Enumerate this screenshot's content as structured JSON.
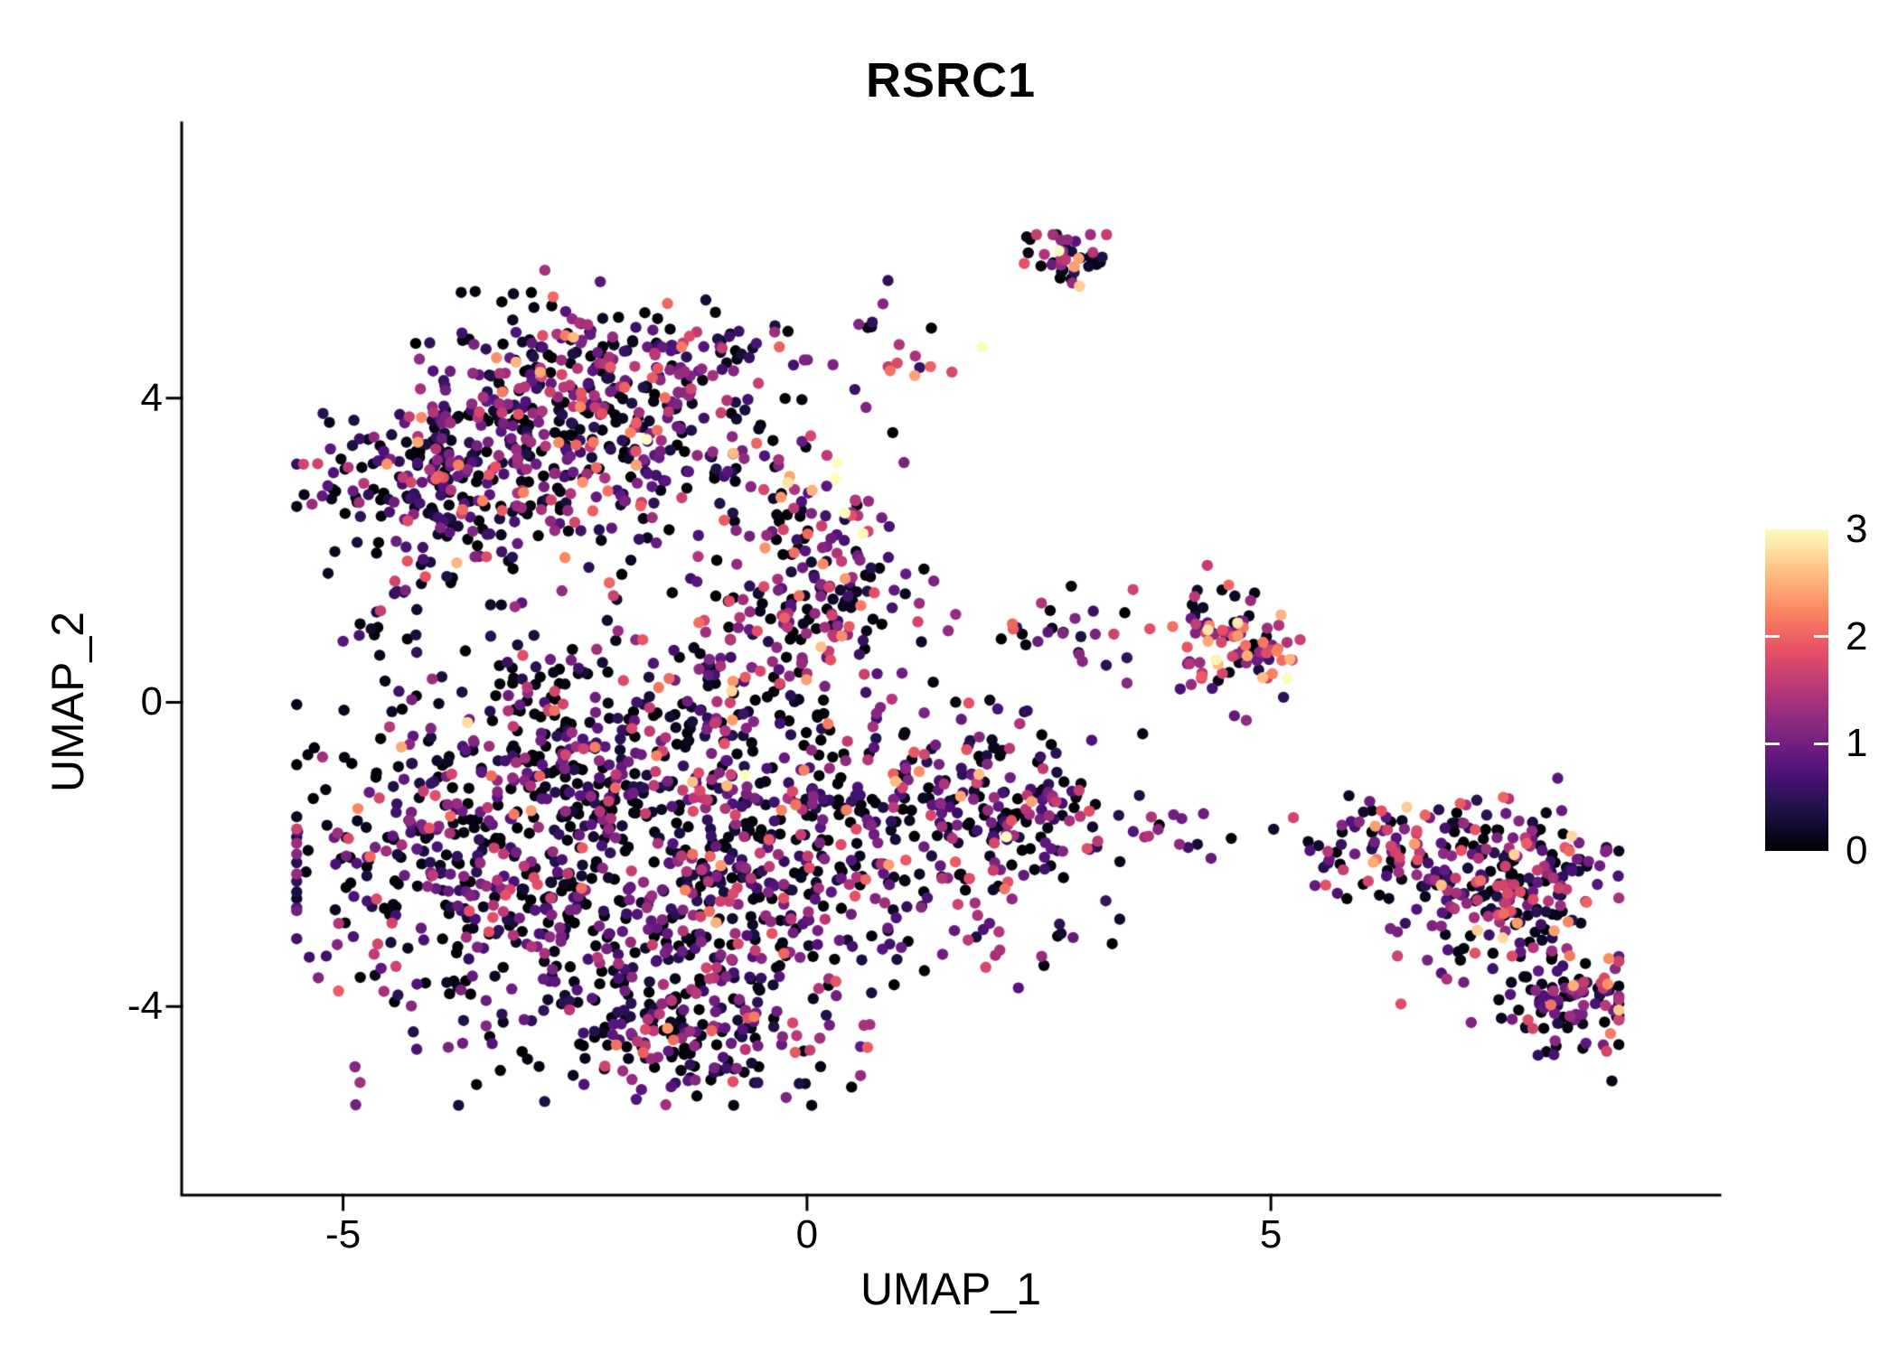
{
  "chart_data": {
    "type": "scatter",
    "title": "RSRC1",
    "xlabel": "UMAP_1",
    "ylabel": "UMAP_2",
    "xlim": [
      -6.74,
      9.84
    ],
    "ylim": [
      -6.48,
      7.62
    ],
    "grid": false,
    "background": "#ffffff",
    "axis_color": "#000000",
    "point_radius_px": 6.2,
    "seed": 42,
    "x_ticks": [
      {
        "value": -5,
        "label": "-5"
      },
      {
        "value": 0,
        "label": "0"
      },
      {
        "value": 5,
        "label": "5"
      }
    ],
    "y_ticks": [
      {
        "value": -4,
        "label": "-4"
      },
      {
        "value": 0,
        "label": "0"
      },
      {
        "value": 4,
        "label": "4"
      }
    ],
    "colorbar": {
      "domain": [
        0,
        3
      ],
      "colormap": "magma",
      "tick_labels": [
        {
          "value": 3,
          "label": "3"
        },
        {
          "value": 2,
          "label": "2"
        },
        {
          "value": 1,
          "label": "1"
        },
        {
          "value": 0,
          "label": "0"
        }
      ],
      "bar_ticks": [
        1,
        2
      ],
      "stops": [
        "#000004",
        "#1d1147",
        "#51127c",
        "#822681",
        "#b63679",
        "#e65164",
        "#fb8861",
        "#fec287",
        "#fcfdbf"
      ]
    },
    "clusters": [
      {
        "cx": -2.6,
        "cy": 3.3,
        "sx": 1.15,
        "sy": 0.75,
        "n": 420,
        "expr_mean": 0.8,
        "expr_sd": 0.75
      },
      {
        "cx": -2.1,
        "cy": 4.5,
        "sx": 0.85,
        "sy": 0.45,
        "n": 170,
        "expr_mean": 0.8,
        "expr_sd": 0.75
      },
      {
        "cx": -4.2,
        "cy": 2.9,
        "sx": 0.55,
        "sy": 0.5,
        "n": 110,
        "expr_mean": 0.7,
        "expr_sd": 0.7
      },
      {
        "cx": 0.3,
        "cy": 1.7,
        "sx": 0.45,
        "sy": 0.85,
        "n": 150,
        "expr_mean": 1.0,
        "expr_sd": 0.8
      },
      {
        "cx": -4.0,
        "cy": 1.4,
        "sx": 0.6,
        "sy": 0.6,
        "n": 45,
        "expr_mean": 0.6,
        "expr_sd": 0.7
      },
      {
        "cx": -3.5,
        "cy": -2.1,
        "sx": 1.05,
        "sy": 1.05,
        "n": 430,
        "expr_mean": 0.65,
        "expr_sd": 0.7
      },
      {
        "cx": -2.3,
        "cy": -0.5,
        "sx": 1.0,
        "sy": 0.7,
        "n": 260,
        "expr_mean": 0.7,
        "expr_sd": 0.7
      },
      {
        "cx": -1.4,
        "cy": -3.2,
        "sx": 1.0,
        "sy": 0.75,
        "n": 280,
        "expr_mean": 0.7,
        "expr_sd": 0.7
      },
      {
        "cx": -0.4,
        "cy": -1.6,
        "sx": 0.85,
        "sy": 0.9,
        "n": 200,
        "expr_mean": 0.7,
        "expr_sd": 0.7
      },
      {
        "cx": -1.1,
        "cy": -4.4,
        "sx": 0.75,
        "sy": 0.45,
        "n": 130,
        "expr_mean": 0.7,
        "expr_sd": 0.7
      },
      {
        "cx": 1.3,
        "cy": -1.7,
        "sx": 0.95,
        "sy": 0.85,
        "n": 260,
        "expr_mean": 0.8,
        "expr_sd": 0.75
      },
      {
        "cx": 2.4,
        "cy": -1.3,
        "sx": 0.45,
        "sy": 0.45,
        "n": 70,
        "expr_mean": 0.9,
        "expr_sd": 0.8
      },
      {
        "cx": -0.55,
        "cy": 0.9,
        "sx": 0.5,
        "sy": 0.6,
        "n": 70,
        "expr_mean": 0.8,
        "expr_sd": 0.8
      },
      {
        "cx": 2.85,
        "cy": 5.8,
        "sx": 0.22,
        "sy": 0.2,
        "n": 40,
        "expr_mean": 1.0,
        "expr_sd": 0.8
      },
      {
        "cx": 0.85,
        "cy": 4.7,
        "sx": 0.3,
        "sy": 0.35,
        "n": 16,
        "expr_mean": 1.0,
        "expr_sd": 0.8
      },
      {
        "cx": 4.6,
        "cy": 0.85,
        "sx": 0.38,
        "sy": 0.38,
        "n": 95,
        "expr_mean": 1.6,
        "expr_sd": 0.7
      },
      {
        "cx": 2.7,
        "cy": 0.95,
        "sx": 0.6,
        "sy": 0.3,
        "n": 30,
        "expr_mean": 1.0,
        "expr_sd": 0.8
      },
      {
        "cx": 4.4,
        "cy": -1.8,
        "sx": 0.9,
        "sy": 0.25,
        "n": 16,
        "expr_mean": 0.7,
        "expr_sd": 0.7
      },
      {
        "cx": 6.6,
        "cy": -1.95,
        "sx": 0.6,
        "sy": 0.3,
        "n": 130,
        "expr_mean": 0.9,
        "expr_sd": 0.8
      },
      {
        "cx": 7.5,
        "cy": -2.8,
        "sx": 0.5,
        "sy": 0.5,
        "n": 130,
        "expr_mean": 0.9,
        "expr_sd": 0.8
      },
      {
        "cx": 8.25,
        "cy": -3.95,
        "sx": 0.4,
        "sy": 0.3,
        "n": 110,
        "expr_mean": 0.9,
        "expr_sd": 0.8
      },
      {
        "cx": 8.0,
        "cy": -2.0,
        "sx": 0.4,
        "sy": 0.3,
        "n": 60,
        "expr_mean": 0.9,
        "expr_sd": 0.8
      }
    ],
    "data_extent": {
      "x": [
        -5.5,
        8.75
      ],
      "y": [
        -5.3,
        6.15
      ]
    }
  }
}
